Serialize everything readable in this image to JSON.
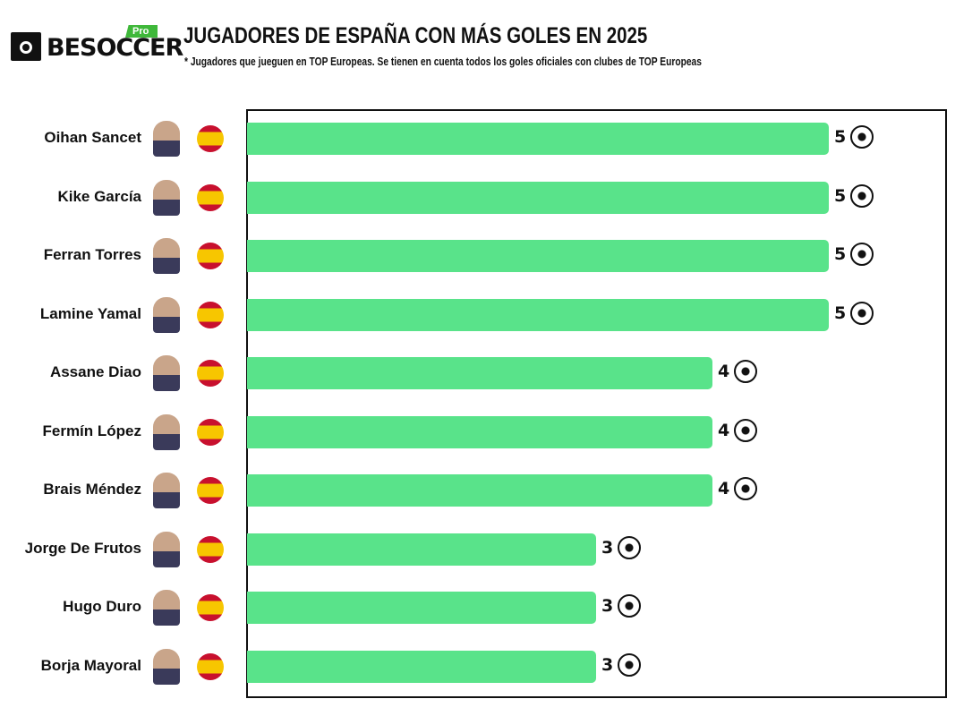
{
  "brand": {
    "logo_text": "BESOCCER",
    "badge": "Pro",
    "accent": "#3fb83a"
  },
  "header": {
    "title": "JUGADORES DE ESPAÑA CON MÁS GOLES EN 2025",
    "subtitle": "* Jugadores que jueguen en TOP Europeas. Se tienen en cuenta todos los goles oficiales con clubes de TOP Europeas"
  },
  "chart_data": {
    "type": "bar",
    "orientation": "horizontal",
    "title": "JUGADORES DE ESPAÑA CON MÁS GOLES EN 2025",
    "categories": [
      "Oihan Sancet",
      "Kike García",
      "Ferran Torres",
      "Lamine Yamal",
      "Assane Diao",
      "Fermín López",
      "Brais Méndez",
      "Jorge De Frutos",
      "Hugo Duro",
      "Borja Mayoral"
    ],
    "values": [
      5,
      5,
      5,
      5,
      4,
      4,
      4,
      3,
      3,
      3
    ],
    "xlim": [
      0,
      6
    ],
    "grid": false,
    "bar_color": "#59e38a",
    "row_icons": [
      "player-photo",
      "spain-flag-icon"
    ],
    "value_icon": "soccer-ball-icon"
  }
}
